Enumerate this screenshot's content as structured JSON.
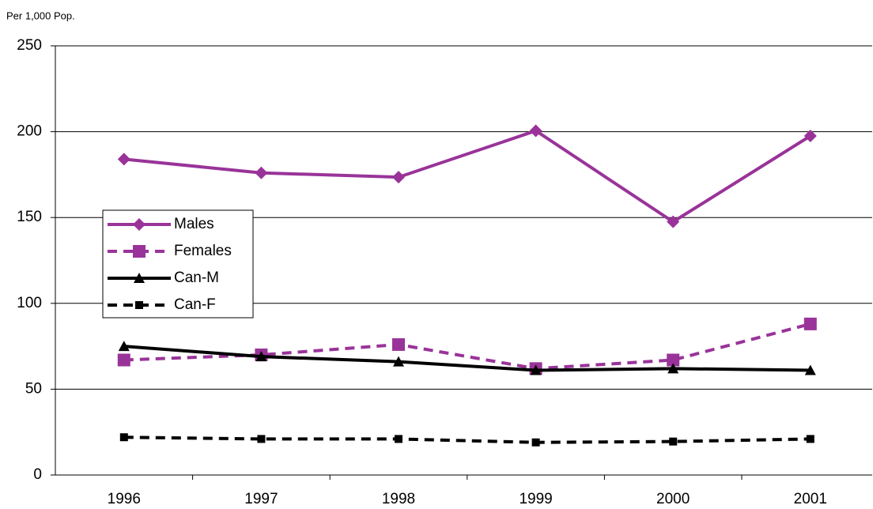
{
  "chart_data": {
    "type": "line",
    "ylabel": "Per 1,000 Pop.",
    "categories": [
      "1996",
      "1997",
      "1998",
      "1999",
      "2000",
      "2001"
    ],
    "series": [
      {
        "name": "Males",
        "color": "#993399",
        "dash": false,
        "marker": "diamond",
        "values": [
          184,
          176,
          173.5,
          200.5,
          147.5,
          197.5
        ]
      },
      {
        "name": "Females",
        "color": "#993399",
        "dash": true,
        "marker": "square",
        "values": [
          67,
          70,
          76,
          62,
          67,
          88
        ]
      },
      {
        "name": "Can-M",
        "color": "#000000",
        "dash": false,
        "marker": "triangle",
        "values": [
          75,
          69,
          66,
          61,
          62,
          61
        ]
      },
      {
        "name": "Can-F",
        "color": "#000000",
        "dash": true,
        "marker": "small-square",
        "values": [
          22,
          21,
          21,
          19,
          19.5,
          21
        ]
      }
    ],
    "ylim": [
      0,
      250
    ],
    "yticks": [
      0,
      50,
      100,
      150,
      200,
      250
    ],
    "grid": true,
    "legend": "left"
  }
}
